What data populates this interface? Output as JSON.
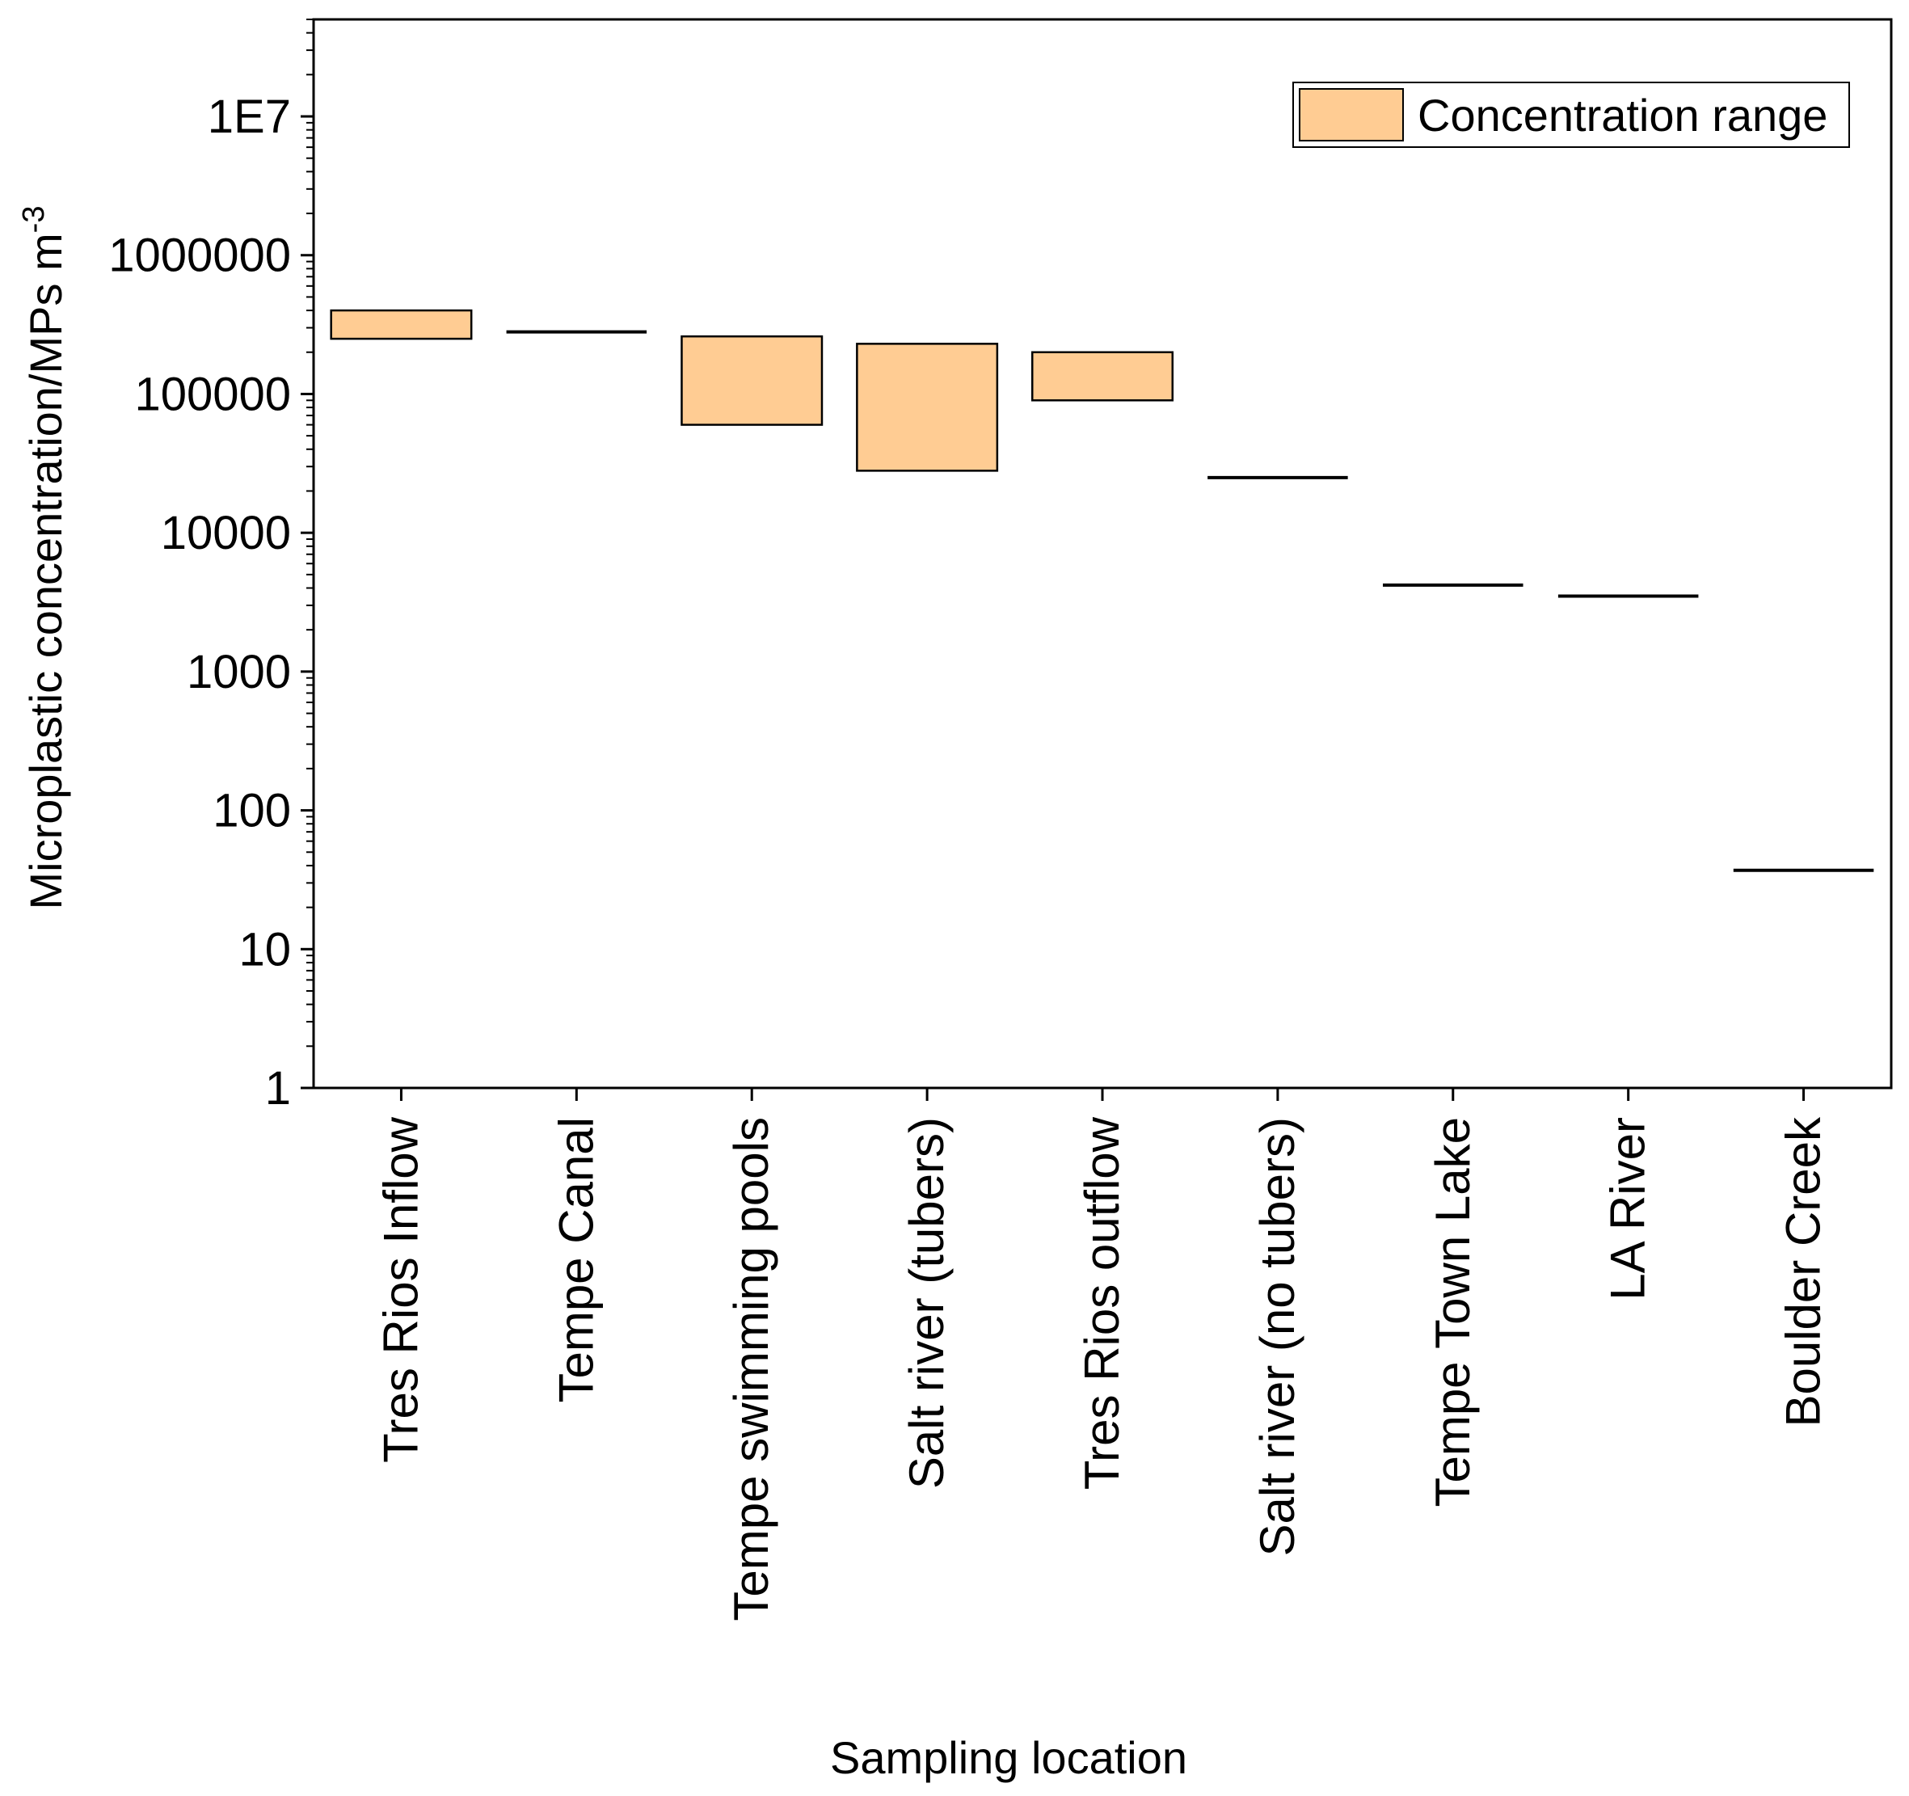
{
  "chart_data": {
    "type": "bar",
    "ylog": true,
    "ylim": [
      1,
      50000000
    ],
    "ytick_labels": [
      "1",
      "10",
      "100",
      "1000",
      "10000",
      "100000",
      "1000000",
      "1E7"
    ],
    "xlabel": "Sampling location",
    "ylabel": "Microplastic concentration/MPs m",
    "ylabel_superscript": "-3",
    "legend": {
      "label": "Concentration range",
      "position": "top-right"
    },
    "colors": {
      "range_fill": "#FFCC93",
      "stroke": "#000000"
    },
    "categories": [
      "Tres Rios Inflow",
      "Tempe Canal",
      "Tempe swimming pools",
      "Salt river (tubers)",
      "Tres Rios outflow",
      "Salt river (no tubers)",
      "Tempe Town Lake",
      "LA River",
      "Boulder Creek"
    ],
    "series": [
      {
        "name": "Concentration range",
        "ranges": [
          [
            250000,
            400000
          ],
          [
            280000,
            280000
          ],
          [
            60000,
            260000
          ],
          [
            28000,
            230000
          ],
          [
            90000,
            200000
          ],
          [
            25000,
            25000
          ],
          [
            4200,
            4200
          ],
          [
            3500,
            3500
          ],
          [
            37,
            37
          ]
        ]
      }
    ]
  }
}
